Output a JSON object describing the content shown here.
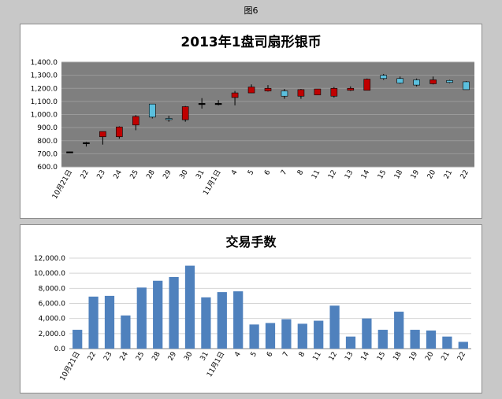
{
  "figure_caption": "图6",
  "colors": {
    "plot_bg": "#7f7f7f",
    "grid": "#9a9a9a",
    "up_fill": "#c00000",
    "down_fill": "#5bc0de",
    "bar_fill": "#4f81bd"
  },
  "chart_data": [
    {
      "type": "candlestick",
      "title": "2013年1盘司扇形银币",
      "xlabel": "",
      "ylabel": "",
      "ylim": [
        600,
        1400
      ],
      "yticks": [
        600,
        700,
        800,
        900,
        1000,
        1100,
        1200,
        1300,
        1400
      ],
      "ytick_labels": [
        "600.0",
        "700.0",
        "800.0",
        "900.0",
        "1,000.0",
        "1,100.0",
        "1,200.0",
        "1,300.0",
        "1,400.0"
      ],
      "grid": true,
      "categories": [
        "10月21日",
        "22",
        "23",
        "24",
        "25",
        "28",
        "29",
        "30",
        "31",
        "11月1日",
        "4",
        "5",
        "6",
        "7",
        "8",
        "11",
        "12",
        "13",
        "14",
        "15",
        "18",
        "19",
        "20",
        "21",
        "22"
      ],
      "open": [
        715,
        785,
        830,
        830,
        920,
        1080,
        970,
        960,
        1085,
        1085,
        1130,
        1165,
        1180,
        1180,
        1140,
        1150,
        1140,
        1185,
        1185,
        1300,
        1275,
        1265,
        1235,
        1260,
        1250
      ],
      "high": [
        715,
        790,
        870,
        910,
        995,
        1080,
        990,
        1065,
        1125,
        1110,
        1180,
        1230,
        1225,
        1195,
        1195,
        1195,
        1210,
        1215,
        1275,
        1310,
        1290,
        1275,
        1290,
        1265,
        1255
      ],
      "low": [
        710,
        755,
        770,
        815,
        880,
        970,
        945,
        945,
        1045,
        1070,
        1070,
        1165,
        1175,
        1120,
        1120,
        1150,
        1130,
        1180,
        1185,
        1265,
        1235,
        1215,
        1230,
        1240,
        1190
      ],
      "close": [
        715,
        785,
        870,
        905,
        985,
        980,
        965,
        1060,
        1085,
        1085,
        1165,
        1210,
        1200,
        1140,
        1190,
        1195,
        1200,
        1200,
        1270,
        1275,
        1240,
        1225,
        1265,
        1245,
        1190
      ]
    },
    {
      "type": "bar",
      "title": "交易手数",
      "xlabel": "",
      "ylabel": "",
      "ylim": [
        0,
        12000
      ],
      "yticks": [
        0,
        2000,
        4000,
        6000,
        8000,
        10000,
        12000
      ],
      "ytick_labels": [
        "0.0",
        "2,000.0",
        "4,000.0",
        "6,000.0",
        "8,000.0",
        "10,000.0",
        "12,000.0"
      ],
      "grid": true,
      "categories": [
        "10月21日",
        "22",
        "23",
        "24",
        "25",
        "28",
        "29",
        "30",
        "31",
        "11月1日",
        "4",
        "5",
        "6",
        "7",
        "8",
        "11",
        "12",
        "13",
        "14",
        "15",
        "18",
        "19",
        "20",
        "21",
        "22"
      ],
      "values": [
        2500,
        6900,
        7000,
        4400,
        8100,
        9000,
        9500,
        11000,
        6800,
        7500,
        7600,
        3200,
        3400,
        3900,
        3300,
        3700,
        5700,
        1600,
        4000,
        2500,
        4900,
        2500,
        2400,
        1600,
        900
      ]
    }
  ]
}
